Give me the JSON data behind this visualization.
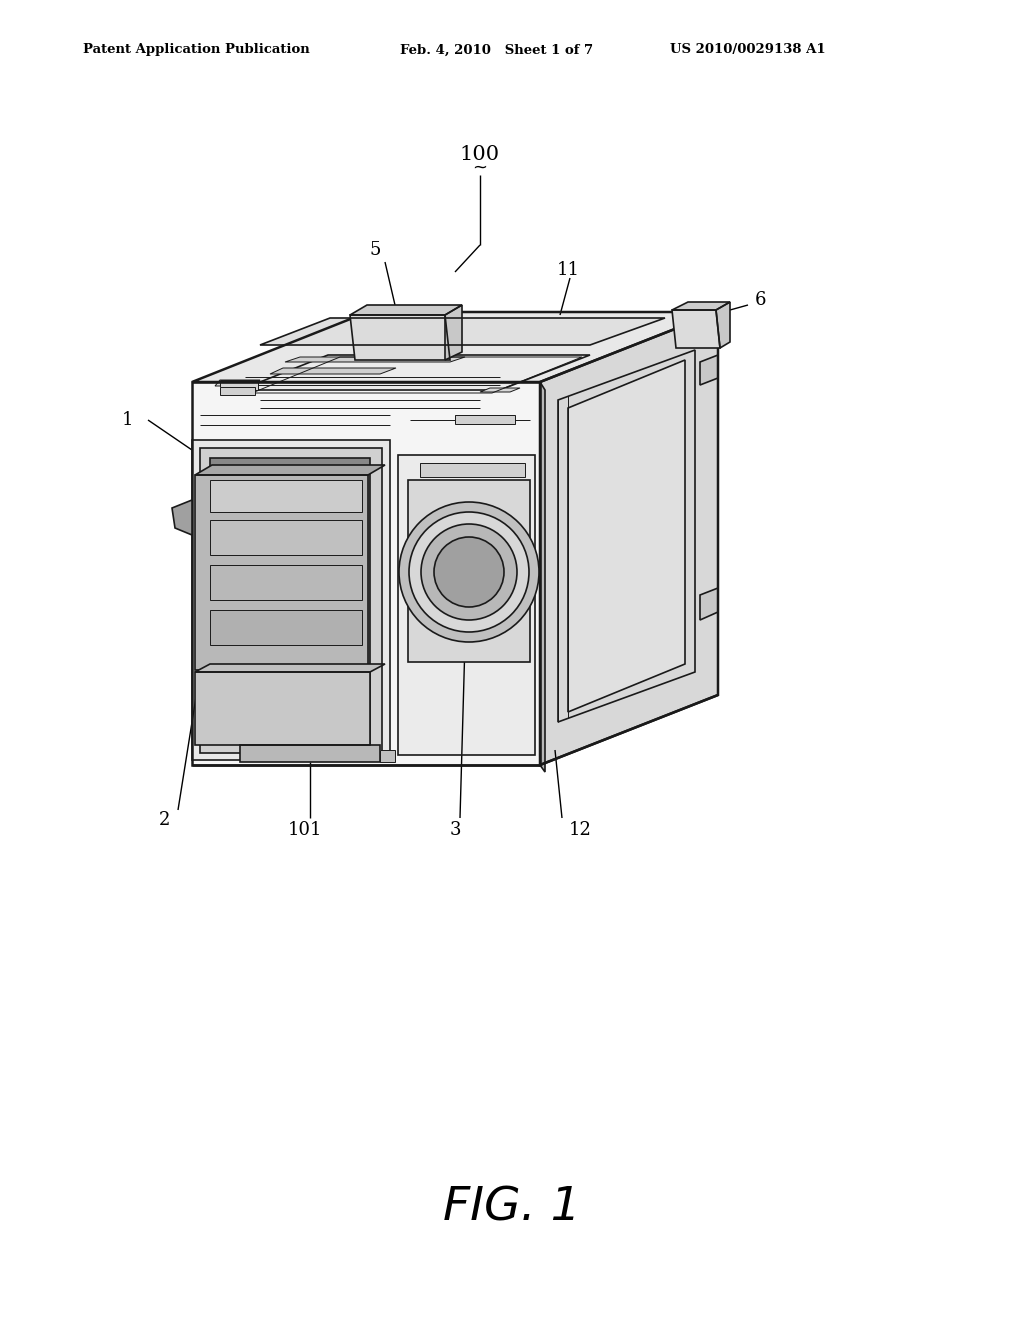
{
  "bg_color": "#ffffff",
  "line_color": "#1a1a1a",
  "header_left": "Patent Application Publication",
  "header_mid": "Feb. 4, 2010   Sheet 1 of 7",
  "header_right": "US 2010/0029138 A1",
  "fig_label": "FIG. 1",
  "label_100": "100",
  "label_1": "1",
  "label_2": "2",
  "label_3": "3",
  "label_5": "5",
  "label_6": "6",
  "label_11": "11",
  "label_12": "12",
  "label_101": "101",
  "lw_main": 1.8,
  "lw_med": 1.2,
  "lw_thin": 0.7,
  "fill_top": "#e8e8e8",
  "fill_right": "#d8d8d8",
  "fill_front": "#f5f5f5",
  "fill_inner": "#c8c8c8"
}
